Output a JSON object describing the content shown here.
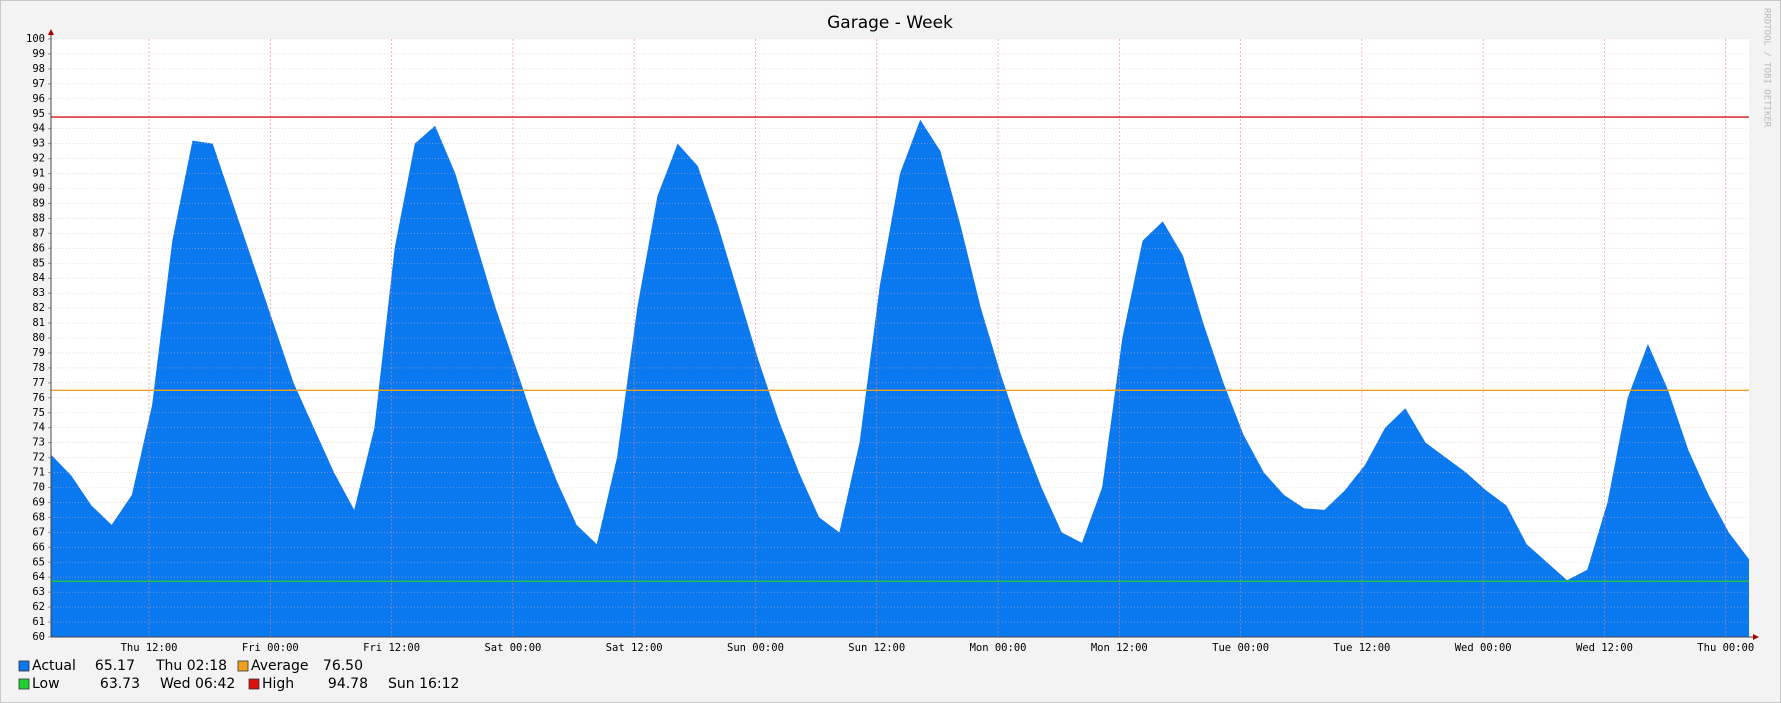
{
  "chart_data": {
    "type": "area",
    "title": "Garage - Week",
    "watermark": "RRDTOOL / TOBI OETIKER",
    "x": [
      2.3,
      4.3,
      6.3,
      8.3,
      10.3,
      12.3,
      14.3,
      16.3,
      18.3,
      20.3,
      22.3,
      24.3,
      26.3,
      28.3,
      30.3,
      32.3,
      34.3,
      36.3,
      38.3,
      40.3,
      42.3,
      44.3,
      46.3,
      48.3,
      50.3,
      52.3,
      54.3,
      56.3,
      58.3,
      60.3,
      62.3,
      64.3,
      66.3,
      68.3,
      70.3,
      72.3,
      74.3,
      76.3,
      78.3,
      80.3,
      82.3,
      84.3,
      86.3,
      88.3,
      90.3,
      92.3,
      94.3,
      96.3,
      98.3,
      100.3,
      102.3,
      104.3,
      106.3,
      108.3,
      110.3,
      112.3,
      114.3,
      116.3,
      118.3,
      120.3,
      122.3,
      124.3,
      126.3,
      128.3,
      130.3,
      132.3,
      134.3,
      136.3,
      138.3,
      140.3,
      142.3,
      144.3,
      146.3,
      148.3,
      150.3,
      152.3,
      154.3,
      156.3,
      158.3,
      160.3,
      162.3,
      164.3,
      166.3,
      168.3,
      170.3
    ],
    "series": [
      {
        "name": "Actual",
        "color": "#0a78ee",
        "current": 65.17,
        "time": "Thu 02:18",
        "values": [
          72.2,
          70.8,
          68.8,
          67.5,
          69.5,
          75.5,
          86.5,
          93.2,
          93,
          89,
          85,
          81,
          77,
          74,
          71,
          68.5,
          74,
          86,
          93,
          94.2,
          91,
          86.5,
          82,
          78,
          74,
          70.5,
          67.5,
          66.2,
          72,
          82,
          89.5,
          93,
          91.5,
          87.5,
          83,
          78.5,
          74.5,
          71,
          68,
          67,
          73,
          83.5,
          91,
          94.6,
          92.5,
          87.5,
          82,
          77.5,
          73.5,
          70,
          67,
          66.3,
          70,
          80,
          86.5,
          87.8,
          85.5,
          81,
          77,
          73.5,
          71,
          69.5,
          68.6,
          68.5,
          69.8,
          71.5,
          74,
          75.3,
          73,
          72,
          71,
          69.8,
          68.8,
          66.2,
          65,
          63.8,
          64.5,
          69,
          76,
          79.6,
          76.5,
          72.5,
          69.5,
          67,
          65.2
        ]
      }
    ],
    "hlines": [
      {
        "name": "Average",
        "color": "#f0a020",
        "value": 76.5,
        "value_label": "76.50"
      },
      {
        "name": "Low",
        "color": "#20d030",
        "value": 63.73,
        "time": "Wed 06:42"
      },
      {
        "name": "High",
        "color": "#dd1010",
        "value": 94.78,
        "time": "Sun 16:12"
      }
    ],
    "xlim": [
      2.3,
      170.3
    ],
    "xticks": [
      {
        "value": 12,
        "label": "Thu 12:00"
      },
      {
        "value": 24,
        "label": "Fri 00:00"
      },
      {
        "value": 36,
        "label": "Fri 12:00"
      },
      {
        "value": 48,
        "label": "Sat 00:00"
      },
      {
        "value": 60,
        "label": "Sat 12:00"
      },
      {
        "value": 72,
        "label": "Sun 00:00"
      },
      {
        "value": 84,
        "label": "Sun 12:00"
      },
      {
        "value": 96,
        "label": "Mon 00:00"
      },
      {
        "value": 108,
        "label": "Mon 12:00"
      },
      {
        "value": 120,
        "label": "Tue 00:00"
      },
      {
        "value": 132,
        "label": "Tue 12:00"
      },
      {
        "value": 144,
        "label": "Wed 00:00"
      },
      {
        "value": 156,
        "label": "Wed 12:00"
      },
      {
        "value": 168,
        "label": "Thu 00:00"
      }
    ],
    "ylim": [
      60,
      100
    ],
    "yticks": [
      60,
      61,
      62,
      63,
      64,
      65,
      66,
      67,
      68,
      69,
      70,
      71,
      72,
      73,
      74,
      75,
      76,
      77,
      78,
      79,
      80,
      81,
      82,
      83,
      84,
      85,
      86,
      87,
      88,
      89,
      90,
      91,
      92,
      93,
      94,
      95,
      96,
      97,
      98,
      99,
      100
    ],
    "grid": true
  }
}
